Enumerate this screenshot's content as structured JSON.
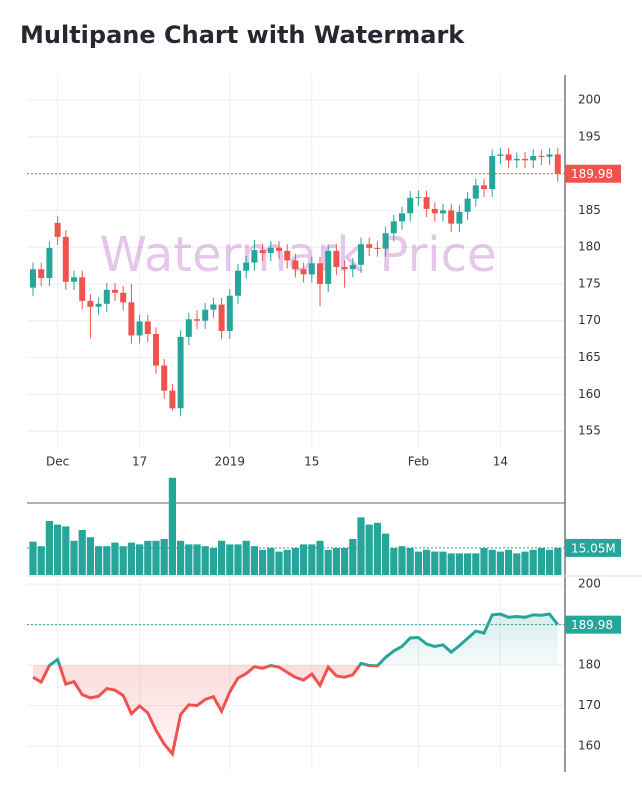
{
  "chart_data": [
    {
      "type": "candlestick",
      "title": "Multipane Chart with Watermark",
      "watermark": "Watermark Price",
      "categories": [
        null,
        null,
        null,
        "Dec",
        null,
        null,
        null,
        null,
        null,
        null,
        null,
        null,
        null,
        "17",
        null,
        null,
        null,
        null,
        null,
        null,
        null,
        null,
        null,
        null,
        "2019",
        null,
        null,
        null,
        null,
        null,
        null,
        null,
        null,
        null,
        "15",
        null,
        null,
        null,
        null,
        null,
        null,
        null,
        null,
        null,
        null,
        null,
        null,
        "Feb",
        null,
        null,
        null,
        null,
        null,
        null,
        null,
        null,
        null,
        "14",
        null,
        null,
        null,
        null,
        null,
        null,
        null
      ],
      "open": [
        174.5,
        177.0,
        175.8,
        183.3,
        181.4,
        175.3,
        175.9,
        172.7,
        171.9,
        172.3,
        174.2,
        173.8,
        172.5,
        168.0,
        169.9,
        168.2,
        163.9,
        160.5,
        158.1,
        167.8,
        170.2,
        170.0,
        171.5,
        172.2,
        168.6,
        173.4,
        176.8,
        177.9,
        179.6,
        179.2,
        179.9,
        179.5,
        178.2,
        177.0,
        176.3,
        177.8,
        175.0,
        179.5,
        177.3,
        177.0,
        177.6,
        180.4,
        179.9,
        179.8,
        181.9,
        183.5,
        184.6,
        186.7,
        186.8,
        185.2,
        184.6,
        185.0,
        183.2,
        184.8,
        186.6,
        188.4,
        187.9,
        192.4,
        192.6,
        191.8,
        192.0,
        191.8,
        192.4,
        192.3,
        192.6
      ],
      "high": [
        177.9,
        177.9,
        180.8,
        184.2,
        182.3,
        176.8,
        176.8,
        173.6,
        173.2,
        175.1,
        175.1,
        174.7,
        175.0,
        170.8,
        170.8,
        169.1,
        164.8,
        161.4,
        168.7,
        171.1,
        171.4,
        172.4,
        173.1,
        173.1,
        174.3,
        177.7,
        178.8,
        181.0,
        180.5,
        180.8,
        180.8,
        180.4,
        179.1,
        177.9,
        178.7,
        178.7,
        180.4,
        180.4,
        178.2,
        178.5,
        181.3,
        181.3,
        180.8,
        182.8,
        184.4,
        185.5,
        187.6,
        187.7,
        187.7,
        186.1,
        185.9,
        185.9,
        185.7,
        187.5,
        189.3,
        189.3,
        193.3,
        193.5,
        193.5,
        192.9,
        192.9,
        193.3,
        193.2,
        193.5,
        193.5
      ],
      "low": [
        173.4,
        174.7,
        174.7,
        180.3,
        174.2,
        174.2,
        171.6,
        167.6,
        170.8,
        171.2,
        172.7,
        171.4,
        166.9,
        166.9,
        167.1,
        162.8,
        159.4,
        157.8,
        157.0,
        166.7,
        168.9,
        168.9,
        170.4,
        167.5,
        167.5,
        172.3,
        175.7,
        176.8,
        178.1,
        178.1,
        178.4,
        177.1,
        175.9,
        175.2,
        175.2,
        172.0,
        173.9,
        176.2,
        174.5,
        175.9,
        176.5,
        178.8,
        178.7,
        178.7,
        180.8,
        182.4,
        183.5,
        185.6,
        184.1,
        183.5,
        183.5,
        182.1,
        182.1,
        183.7,
        185.5,
        186.8,
        186.8,
        191.3,
        190.7,
        190.7,
        190.7,
        190.7,
        191.2,
        191.2,
        188.9
      ],
      "close": [
        177.0,
        175.8,
        179.9,
        181.4,
        175.3,
        175.9,
        172.7,
        171.9,
        172.3,
        174.2,
        173.8,
        172.5,
        168.0,
        169.9,
        168.2,
        163.9,
        160.5,
        158.1,
        167.8,
        170.2,
        170.0,
        171.5,
        172.2,
        168.6,
        173.4,
        176.8,
        177.9,
        179.6,
        179.2,
        179.9,
        179.5,
        178.2,
        177.0,
        176.3,
        177.8,
        175.0,
        179.5,
        177.3,
        177.0,
        177.6,
        180.4,
        179.9,
        179.8,
        181.9,
        183.5,
        184.6,
        186.7,
        186.8,
        185.2,
        184.6,
        185.0,
        183.2,
        184.8,
        186.6,
        188.4,
        187.9,
        192.4,
        192.6,
        191.8,
        192.0,
        191.8,
        192.4,
        192.3,
        192.6,
        189.98
      ],
      "up_color": "#26a69a",
      "down_color": "#ef5350",
      "ylim": [
        152.7,
        203.4
      ],
      "yticks": [
        155.0,
        160.0,
        165.0,
        170.0,
        175.0,
        180.0,
        185.0,
        190.0,
        195.0,
        200.0
      ],
      "grid": true
    },
    {
      "type": "bar",
      "color": "#26a69a",
      "values": [
        18.5,
        16,
        30,
        28,
        27,
        19,
        25,
        21,
        16,
        16,
        18,
        16,
        18,
        17,
        19,
        19,
        20,
        54,
        19,
        17,
        17,
        16,
        15,
        19,
        17,
        17,
        19,
        16,
        14,
        15,
        13,
        14,
        15,
        17,
        17,
        19,
        14,
        15,
        15,
        20,
        32,
        28,
        29,
        23,
        15,
        16,
        15,
        13,
        14,
        13,
        13,
        12,
        12,
        12,
        12,
        15,
        14,
        13,
        14,
        12,
        13,
        14,
        15,
        14,
        15.05
      ],
      "value_labels": [
        null,
        null,
        null,
        null,
        null,
        null,
        null,
        null,
        null,
        null,
        null,
        null,
        null,
        null,
        null,
        null,
        null,
        null,
        null,
        null,
        null,
        null,
        null,
        null,
        null,
        null,
        null,
        null,
        null,
        null,
        null,
        null,
        null,
        null,
        null,
        null,
        null,
        null,
        null,
        null,
        null,
        null,
        null,
        null,
        null,
        null,
        null,
        null,
        null,
        null,
        null,
        null,
        null,
        null,
        null,
        null,
        null,
        null,
        null,
        null,
        null,
        null,
        null,
        null,
        "15.05M"
      ],
      "ylim": [
        0,
        55
      ]
    },
    {
      "type": "baseline",
      "baseline": 180,
      "up_color": "#26a69a",
      "down_color": "#ef5350",
      "values": [
        177.0,
        175.8,
        179.9,
        181.4,
        175.3,
        175.9,
        172.7,
        171.9,
        172.3,
        174.2,
        173.8,
        172.5,
        168.0,
        169.9,
        168.2,
        163.9,
        160.5,
        158.1,
        167.8,
        170.2,
        170.0,
        171.5,
        172.2,
        168.6,
        173.4,
        176.8,
        177.9,
        179.6,
        179.2,
        179.9,
        179.5,
        178.2,
        177.0,
        176.3,
        177.8,
        175.0,
        179.5,
        177.3,
        177.0,
        177.6,
        180.4,
        179.9,
        179.8,
        181.9,
        183.5,
        184.6,
        186.7,
        186.8,
        185.2,
        184.6,
        185.0,
        183.2,
        184.8,
        186.6,
        188.4,
        187.9,
        192.4,
        192.6,
        191.8,
        192.0,
        191.8,
        192.4,
        192.3,
        192.6,
        189.98
      ],
      "ylim": [
        154.1,
        201.5
      ],
      "yticks": [
        160.0,
        170.0,
        180.0,
        190.0,
        200.0
      ],
      "grid": true
    }
  ]
}
